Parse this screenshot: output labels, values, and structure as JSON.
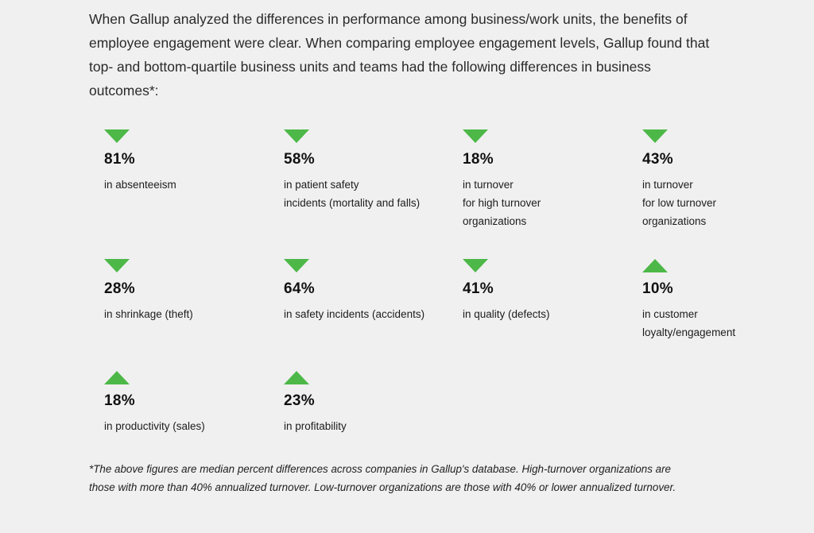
{
  "intro": "When Gallup analyzed the differences in performance among business/work units, the benefits of employee engagement were clear. When comparing employee engagement levels, Gallup found that top- and bottom-quartile business units and teams had the following differences in business outcomes*:",
  "stats": [
    {
      "value": "81%",
      "direction": "down",
      "lines": [
        "in absenteeism"
      ]
    },
    {
      "value": "58%",
      "direction": "down",
      "lines": [
        "in patient safety",
        "incidents (mortality and falls)"
      ]
    },
    {
      "value": "18%",
      "direction": "down",
      "lines": [
        "in turnover",
        "for high turnover",
        "organizations"
      ]
    },
    {
      "value": "43%",
      "direction": "down",
      "lines": [
        "in turnover",
        "for low turnover",
        "organizations"
      ]
    },
    {
      "value": "28%",
      "direction": "down",
      "lines": [
        "in shrinkage (theft)"
      ]
    },
    {
      "value": "64%",
      "direction": "down",
      "lines": [
        "in safety incidents (accidents)"
      ]
    },
    {
      "value": "41%",
      "direction": "down",
      "lines": [
        "in quality (defects)"
      ]
    },
    {
      "value": "10%",
      "direction": "up",
      "lines": [
        "in customer",
        "loyalty/engagement"
      ]
    },
    {
      "value": "18%",
      "direction": "up",
      "lines": [
        "in productivity (sales)"
      ]
    },
    {
      "value": "23%",
      "direction": "up",
      "lines": [
        "in profitability"
      ]
    }
  ],
  "footnote": "*The above figures are median percent differences across companies in Gallup's database. High-turnover organizations are those with more than 40% annualized turnover. Low-turnover organizations are those with 40% or lower annualized turnover.",
  "colors": {
    "arrow": "#4db848",
    "background": "#f0f0f0"
  },
  "icons": {
    "down": "triangle-down-icon",
    "up": "triangle-up-icon"
  }
}
